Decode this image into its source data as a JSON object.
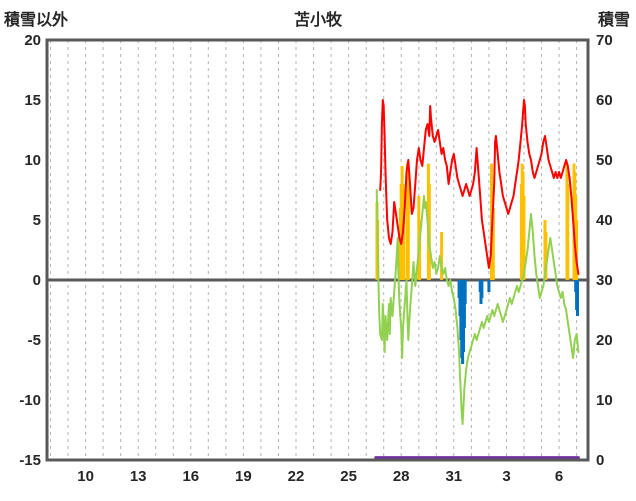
{
  "chart_data": {
    "type": "line",
    "title": "苫小牧",
    "left_axis": {
      "label": "積雪以外",
      "min": -15,
      "max": 20,
      "ticks": [
        20,
        15,
        10,
        5,
        0,
        -5,
        -10,
        -15
      ]
    },
    "right_axis": {
      "label": "積雪",
      "min": 0,
      "max": 70,
      "ticks": [
        70,
        60,
        50,
        40,
        30,
        20,
        10,
        0
      ]
    },
    "x_axis": {
      "min": 7.8,
      "max": 38.65,
      "grid_min": 8,
      "grid_max": 38,
      "grid_step": 1,
      "ticks": [
        {
          "value": 10,
          "label": "10"
        },
        {
          "value": 13,
          "label": "13"
        },
        {
          "value": 16,
          "label": "16"
        },
        {
          "value": 19,
          "label": "19"
        },
        {
          "value": 22,
          "label": "22"
        },
        {
          "value": 25,
          "label": "25"
        },
        {
          "value": 28,
          "label": "28"
        },
        {
          "value": 31,
          "label": "31"
        },
        {
          "value": 34,
          "label": "3"
        },
        {
          "value": 37,
          "label": "6"
        }
      ]
    },
    "frame_color": "#595959",
    "grid_color": "#b3b3b3",
    "zero_line_color": "#595959",
    "series": [
      {
        "name": "yellow-bars",
        "type": "bar",
        "axis": "left",
        "color": "#ffc000",
        "points": [
          [
            26.62,
            6.5
          ],
          [
            26.66,
            5
          ],
          [
            27.9,
            4
          ],
          [
            27.95,
            6
          ],
          [
            28.0,
            8
          ],
          [
            28.05,
            9.5
          ],
          [
            28.1,
            8
          ],
          [
            28.15,
            6
          ],
          [
            28.35,
            9.7
          ],
          [
            28.4,
            8
          ],
          [
            29.0,
            7
          ],
          [
            29.05,
            5
          ],
          [
            29.55,
            9.7
          ],
          [
            29.6,
            8
          ],
          [
            30.3,
            4
          ],
          [
            33.15,
            9.7
          ],
          [
            33.2,
            8
          ],
          [
            33.25,
            6
          ],
          [
            34.85,
            8
          ],
          [
            34.9,
            9.7
          ],
          [
            34.95,
            9
          ],
          [
            35.0,
            7
          ],
          [
            36.2,
            5
          ],
          [
            36.25,
            4
          ],
          [
            37.45,
            9.7
          ],
          [
            37.5,
            8
          ],
          [
            37.85,
            9.7
          ],
          [
            37.9,
            9
          ],
          [
            37.95,
            7
          ],
          [
            38.0,
            5
          ]
        ]
      },
      {
        "name": "blue-bars",
        "type": "bar",
        "axis": "left",
        "color": "#0070c0",
        "points": [
          [
            31.3,
            -1.5
          ],
          [
            31.35,
            -3
          ],
          [
            31.4,
            -5
          ],
          [
            31.45,
            -6.5
          ],
          [
            31.5,
            -7
          ],
          [
            31.55,
            -6
          ],
          [
            31.6,
            -4
          ],
          [
            31.65,
            -2
          ],
          [
            32.5,
            -1
          ],
          [
            32.55,
            -2
          ],
          [
            32.6,
            -1.5
          ],
          [
            33.0,
            -1
          ],
          [
            37.95,
            -1
          ],
          [
            38.0,
            -2.5
          ],
          [
            38.05,
            -3
          ]
        ]
      },
      {
        "name": "green-line",
        "type": "line",
        "axis": "left",
        "color": "#92d050",
        "width": 2,
        "points": [
          [
            26.6,
            7.5
          ],
          [
            26.65,
            4
          ],
          [
            26.7,
            0
          ],
          [
            26.75,
            -3
          ],
          [
            26.8,
            -4.5
          ],
          [
            26.9,
            -5
          ],
          [
            26.95,
            -2
          ],
          [
            27.0,
            -4
          ],
          [
            27.05,
            -6
          ],
          [
            27.1,
            -3
          ],
          [
            27.2,
            -5
          ],
          [
            27.3,
            -2
          ],
          [
            27.35,
            -4.5
          ],
          [
            27.4,
            -1.5
          ],
          [
            27.5,
            -3
          ],
          [
            27.6,
            -1
          ],
          [
            27.7,
            1
          ],
          [
            27.8,
            3.5
          ],
          [
            27.85,
            0
          ],
          [
            27.9,
            -2
          ],
          [
            28.0,
            -4
          ],
          [
            28.05,
            -6.5
          ],
          [
            28.1,
            -4
          ],
          [
            28.2,
            -2
          ],
          [
            28.3,
            0
          ],
          [
            28.35,
            -3
          ],
          [
            28.4,
            -5
          ],
          [
            28.5,
            -2.5
          ],
          [
            28.6,
            -0.5
          ],
          [
            28.7,
            1.5
          ],
          [
            28.8,
            -0.5
          ],
          [
            28.9,
            1
          ],
          [
            29.0,
            2.5
          ],
          [
            29.1,
            4
          ],
          [
            29.2,
            5.5
          ],
          [
            29.3,
            7
          ],
          [
            29.35,
            6
          ],
          [
            29.4,
            6.5
          ],
          [
            29.5,
            5
          ],
          [
            29.6,
            3
          ],
          [
            29.7,
            2
          ],
          [
            29.8,
            1
          ],
          [
            29.9,
            1.5
          ],
          [
            30.0,
            0.5
          ],
          [
            30.1,
            1
          ],
          [
            30.2,
            2
          ],
          [
            30.3,
            1
          ],
          [
            30.4,
            0.5
          ],
          [
            30.5,
            1
          ],
          [
            30.6,
            0
          ],
          [
            30.7,
            -0.5
          ],
          [
            30.8,
            0
          ],
          [
            30.9,
            -1
          ],
          [
            31.0,
            -1.5
          ],
          [
            31.1,
            -2.5
          ],
          [
            31.2,
            -4
          ],
          [
            31.3,
            -6
          ],
          [
            31.35,
            -8
          ],
          [
            31.4,
            -9.5
          ],
          [
            31.45,
            -11
          ],
          [
            31.5,
            -12
          ],
          [
            31.55,
            -10.5
          ],
          [
            31.6,
            -9
          ],
          [
            31.7,
            -7.5
          ],
          [
            31.8,
            -6.5
          ],
          [
            31.9,
            -6
          ],
          [
            32.0,
            -5.5
          ],
          [
            32.1,
            -5
          ],
          [
            32.2,
            -4.5
          ],
          [
            32.3,
            -5
          ],
          [
            32.4,
            -4.5
          ],
          [
            32.5,
            -4
          ],
          [
            32.6,
            -3.5
          ],
          [
            32.7,
            -4
          ],
          [
            32.8,
            -3.5
          ],
          [
            32.9,
            -3
          ],
          [
            33.0,
            -3.5
          ],
          [
            33.1,
            -3
          ],
          [
            33.2,
            -2.5
          ],
          [
            33.3,
            -3
          ],
          [
            33.4,
            -2.5
          ],
          [
            33.5,
            -2
          ],
          [
            33.6,
            -2.5
          ],
          [
            33.7,
            -3
          ],
          [
            33.8,
            -3.5
          ],
          [
            33.9,
            -3
          ],
          [
            34.0,
            -2.5
          ],
          [
            34.1,
            -2
          ],
          [
            34.2,
            -1.5
          ],
          [
            34.3,
            -2
          ],
          [
            34.4,
            -1.5
          ],
          [
            34.5,
            -1
          ],
          [
            34.6,
            -0.5
          ],
          [
            34.7,
            -1
          ],
          [
            34.8,
            -0.5
          ],
          [
            34.9,
            0
          ],
          [
            35.0,
            0.5
          ],
          [
            35.1,
            1.5
          ],
          [
            35.2,
            2.5
          ],
          [
            35.3,
            4
          ],
          [
            35.4,
            5.5
          ],
          [
            35.5,
            4
          ],
          [
            35.6,
            2
          ],
          [
            35.7,
            0.5
          ],
          [
            35.8,
            -0.5
          ],
          [
            35.9,
            -1.5
          ],
          [
            36.0,
            -1
          ],
          [
            36.1,
            -0.5
          ],
          [
            36.2,
            0.5
          ],
          [
            36.3,
            1.5
          ],
          [
            36.4,
            2.5
          ],
          [
            36.5,
            3.5
          ],
          [
            36.6,
            2.5
          ],
          [
            36.7,
            1.5
          ],
          [
            36.8,
            0.5
          ],
          [
            36.9,
            -0.5
          ],
          [
            37.0,
            -1
          ],
          [
            37.1,
            -1.5
          ],
          [
            37.2,
            -1
          ],
          [
            37.3,
            -2
          ],
          [
            37.4,
            -2.5
          ],
          [
            37.5,
            -3.5
          ],
          [
            37.6,
            -4.5
          ],
          [
            37.7,
            -5.5
          ],
          [
            37.8,
            -6.5
          ],
          [
            37.9,
            -5
          ],
          [
            38.0,
            -4.5
          ],
          [
            38.1,
            -6
          ]
        ]
      },
      {
        "name": "red-line",
        "type": "line",
        "axis": "left",
        "color": "#ff0000",
        "width": 2,
        "points": [
          [
            26.8,
            7.5
          ],
          [
            26.85,
            9
          ],
          [
            26.9,
            13
          ],
          [
            26.95,
            15
          ],
          [
            27.0,
            14.5
          ],
          [
            27.05,
            12
          ],
          [
            27.1,
            9
          ],
          [
            27.15,
            7
          ],
          [
            27.2,
            5
          ],
          [
            27.3,
            3.5
          ],
          [
            27.4,
            3
          ],
          [
            27.5,
            4
          ],
          [
            27.6,
            6.5
          ],
          [
            27.7,
            5.5
          ],
          [
            27.8,
            4.5
          ],
          [
            27.9,
            3.5
          ],
          [
            28.0,
            3
          ],
          [
            28.1,
            4
          ],
          [
            28.2,
            6
          ],
          [
            28.3,
            9
          ],
          [
            28.4,
            10
          ],
          [
            28.5,
            8
          ],
          [
            28.6,
            5.5
          ],
          [
            28.7,
            6
          ],
          [
            28.8,
            8
          ],
          [
            28.9,
            10
          ],
          [
            29.0,
            11
          ],
          [
            29.1,
            10
          ],
          [
            29.2,
            9.5
          ],
          [
            29.3,
            11
          ],
          [
            29.4,
            12.5
          ],
          [
            29.5,
            13
          ],
          [
            29.6,
            12
          ],
          [
            29.65,
            14.5
          ],
          [
            29.7,
            13.5
          ],
          [
            29.8,
            12
          ],
          [
            29.9,
            11.5
          ],
          [
            30.0,
            12
          ],
          [
            30.1,
            12.5
          ],
          [
            30.2,
            11.5
          ],
          [
            30.3,
            10.5
          ],
          [
            30.4,
            11
          ],
          [
            30.5,
            10
          ],
          [
            30.6,
            9.5
          ],
          [
            30.7,
            8
          ],
          [
            30.8,
            9
          ],
          [
            30.9,
            10
          ],
          [
            31.0,
            10.5
          ],
          [
            31.1,
            9.5
          ],
          [
            31.2,
            8.5
          ],
          [
            31.3,
            8
          ],
          [
            31.4,
            7.5
          ],
          [
            31.5,
            7
          ],
          [
            31.6,
            7.5
          ],
          [
            31.7,
            8
          ],
          [
            31.8,
            7.5
          ],
          [
            31.9,
            7
          ],
          [
            32.0,
            7.5
          ],
          [
            32.1,
            8
          ],
          [
            32.2,
            9
          ],
          [
            32.3,
            11
          ],
          [
            32.4,
            9
          ],
          [
            32.5,
            7
          ],
          [
            32.6,
            5
          ],
          [
            32.7,
            4
          ],
          [
            32.8,
            3
          ],
          [
            32.9,
            2
          ],
          [
            33.0,
            1
          ],
          [
            33.1,
            2
          ],
          [
            33.2,
            5
          ],
          [
            33.3,
            8
          ],
          [
            33.35,
            11.5
          ],
          [
            33.4,
            12
          ],
          [
            33.5,
            10.5
          ],
          [
            33.6,
            9
          ],
          [
            33.7,
            8
          ],
          [
            33.8,
            7
          ],
          [
            33.9,
            6.5
          ],
          [
            34.0,
            6
          ],
          [
            34.1,
            5.5
          ],
          [
            34.2,
            6
          ],
          [
            34.3,
            6.5
          ],
          [
            34.4,
            7
          ],
          [
            34.5,
            8
          ],
          [
            34.6,
            9
          ],
          [
            34.7,
            10
          ],
          [
            34.8,
            11.5
          ],
          [
            34.9,
            13
          ],
          [
            35.0,
            15
          ],
          [
            35.05,
            14.5
          ],
          [
            35.1,
            13
          ],
          [
            35.2,
            11.5
          ],
          [
            35.3,
            10.5
          ],
          [
            35.4,
            10
          ],
          [
            35.5,
            9
          ],
          [
            35.6,
            8.5
          ],
          [
            35.7,
            9
          ],
          [
            35.8,
            9.5
          ],
          [
            35.9,
            10
          ],
          [
            36.0,
            10.5
          ],
          [
            36.1,
            11.5
          ],
          [
            36.2,
            12
          ],
          [
            36.3,
            11
          ],
          [
            36.4,
            10
          ],
          [
            36.5,
            9.5
          ],
          [
            36.6,
            9
          ],
          [
            36.7,
            8.5
          ],
          [
            36.8,
            9
          ],
          [
            36.9,
            8.5
          ],
          [
            37.0,
            9
          ],
          [
            37.1,
            8.5
          ],
          [
            37.2,
            9
          ],
          [
            37.3,
            9.5
          ],
          [
            37.4,
            10
          ],
          [
            37.5,
            9.5
          ],
          [
            37.6,
            8.5
          ],
          [
            37.7,
            7
          ],
          [
            37.8,
            5
          ],
          [
            37.9,
            3
          ],
          [
            38.0,
            1.5
          ],
          [
            38.1,
            0.5
          ]
        ]
      },
      {
        "name": "purple-snow-line",
        "type": "line",
        "axis": "right",
        "color": "#7030a0",
        "width": 3,
        "points": [
          [
            26.55,
            0.4
          ],
          [
            38.1,
            0.4
          ]
        ]
      }
    ]
  }
}
